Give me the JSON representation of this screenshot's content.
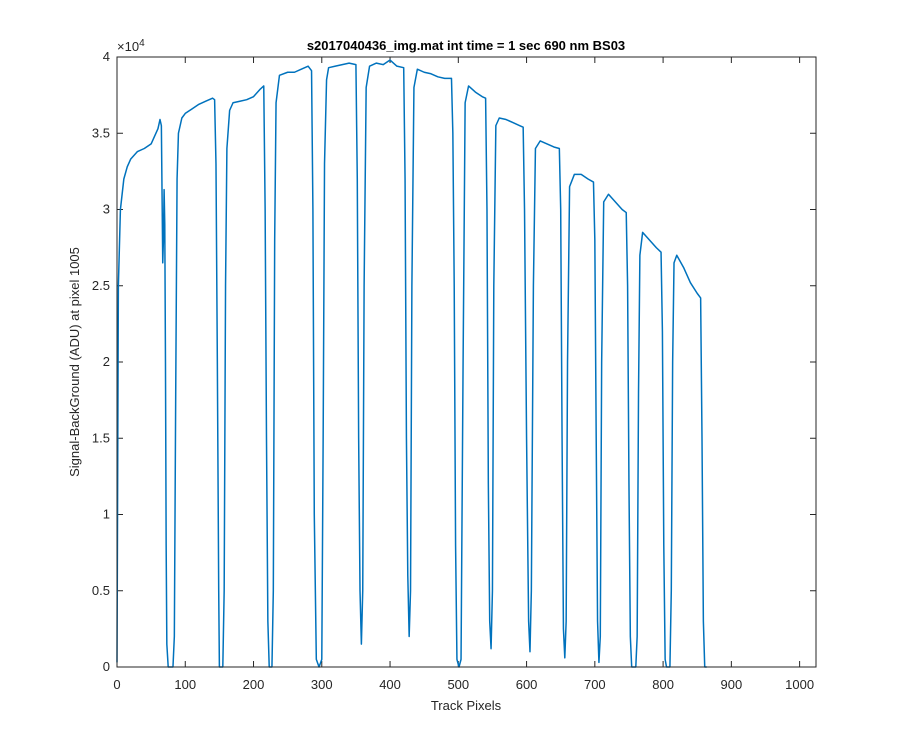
{
  "chart_data": {
    "type": "line",
    "title": "s2017040436_img.mat int time = 1 sec  690 nm BS03",
    "xlabel": "Track Pixels",
    "ylabel": "Signal-BackGround (ADU) at pixel 1005",
    "xlim": [
      0,
      1024
    ],
    "ylim": [
      0,
      40000
    ],
    "x_ticks": [
      0,
      100,
      200,
      300,
      400,
      500,
      600,
      700,
      800,
      900,
      1000
    ],
    "x_tick_labels": [
      "0",
      "100",
      "200",
      "300",
      "400",
      "500",
      "600",
      "700",
      "800",
      "900",
      "1000"
    ],
    "y_ticks": [
      0,
      5000,
      10000,
      15000,
      20000,
      25000,
      30000,
      35000,
      40000
    ],
    "y_tick_labels": [
      "0",
      "0.5",
      "1",
      "1.5",
      "2",
      "2.5",
      "3",
      "3.5",
      "4"
    ],
    "y_exponent_label": "×10",
    "y_exponent_power": "4",
    "grid": false,
    "line_color": "#0072BD",
    "series": [
      {
        "values_xy": [
          [
            0,
            300
          ],
          [
            2,
            25000
          ],
          [
            5,
            30000
          ],
          [
            10,
            32000
          ],
          [
            15,
            32800
          ],
          [
            20,
            33300
          ],
          [
            30,
            33800
          ],
          [
            40,
            34000
          ],
          [
            50,
            34300
          ],
          [
            55,
            34800
          ],
          [
            60,
            35300
          ],
          [
            63,
            35900
          ],
          [
            65,
            35500
          ],
          [
            66,
            31000
          ],
          [
            67,
            26500
          ],
          [
            68,
            28000
          ],
          [
            69,
            31300
          ],
          [
            70,
            29000
          ],
          [
            71,
            20000
          ],
          [
            72,
            8000
          ],
          [
            73,
            1500
          ],
          [
            75,
            0
          ],
          [
            82,
            0
          ],
          [
            84,
            2000
          ],
          [
            86,
            18000
          ],
          [
            88,
            32000
          ],
          [
            90,
            35000
          ],
          [
            95,
            36000
          ],
          [
            100,
            36300
          ],
          [
            110,
            36600
          ],
          [
            120,
            36900
          ],
          [
            130,
            37100
          ],
          [
            140,
            37300
          ],
          [
            143,
            37200
          ],
          [
            145,
            33000
          ],
          [
            147,
            20000
          ],
          [
            149,
            5000
          ],
          [
            150,
            0
          ],
          [
            155,
            0
          ],
          [
            157,
            5000
          ],
          [
            159,
            25000
          ],
          [
            161,
            34000
          ],
          [
            165,
            36500
          ],
          [
            170,
            37000
          ],
          [
            180,
            37100
          ],
          [
            190,
            37200
          ],
          [
            200,
            37400
          ],
          [
            210,
            37900
          ],
          [
            215,
            38100
          ],
          [
            217,
            30000
          ],
          [
            219,
            15000
          ],
          [
            221,
            3000
          ],
          [
            223,
            0
          ],
          [
            227,
            0
          ],
          [
            229,
            5000
          ],
          [
            231,
            28000
          ],
          [
            233,
            37000
          ],
          [
            238,
            38800
          ],
          [
            250,
            39000
          ],
          [
            260,
            39000
          ],
          [
            270,
            39200
          ],
          [
            280,
            39400
          ],
          [
            285,
            39100
          ],
          [
            287,
            30000
          ],
          [
            289,
            10000
          ],
          [
            292,
            500
          ],
          [
            296,
            0
          ],
          [
            300,
            500
          ],
          [
            302,
            15000
          ],
          [
            304,
            33000
          ],
          [
            307,
            38500
          ],
          [
            310,
            39300
          ],
          [
            320,
            39400
          ],
          [
            330,
            39500
          ],
          [
            340,
            39600
          ],
          [
            350,
            39500
          ],
          [
            352,
            32000
          ],
          [
            354,
            15000
          ],
          [
            356,
            5000
          ],
          [
            358,
            1500
          ],
          [
            360,
            5000
          ],
          [
            362,
            25000
          ],
          [
            365,
            38000
          ],
          [
            370,
            39400
          ],
          [
            380,
            39600
          ],
          [
            390,
            39500
          ],
          [
            400,
            39800
          ],
          [
            410,
            39400
          ],
          [
            420,
            39300
          ],
          [
            422,
            32000
          ],
          [
            424,
            15000
          ],
          [
            426,
            6000
          ],
          [
            428,
            2000
          ],
          [
            430,
            5000
          ],
          [
            432,
            25000
          ],
          [
            435,
            38000
          ],
          [
            440,
            39200
          ],
          [
            450,
            39000
          ],
          [
            460,
            38900
          ],
          [
            470,
            38700
          ],
          [
            480,
            38600
          ],
          [
            490,
            38600
          ],
          [
            492,
            35000
          ],
          [
            494,
            25000
          ],
          [
            496,
            8000
          ],
          [
            498,
            500
          ],
          [
            501,
            0
          ],
          [
            504,
            500
          ],
          [
            507,
            20000
          ],
          [
            510,
            37000
          ],
          [
            515,
            38100
          ],
          [
            525,
            37700
          ],
          [
            535,
            37400
          ],
          [
            540,
            37300
          ],
          [
            542,
            30000
          ],
          [
            544,
            12000
          ],
          [
            546,
            3000
          ],
          [
            548,
            1200
          ],
          [
            550,
            5000
          ],
          [
            552,
            25000
          ],
          [
            555,
            35500
          ],
          [
            560,
            36000
          ],
          [
            570,
            35900
          ],
          [
            580,
            35700
          ],
          [
            590,
            35500
          ],
          [
            595,
            35400
          ],
          [
            597,
            30000
          ],
          [
            600,
            15000
          ],
          [
            603,
            3000
          ],
          [
            605,
            1000
          ],
          [
            607,
            5000
          ],
          [
            610,
            25000
          ],
          [
            613,
            34000
          ],
          [
            620,
            34500
          ],
          [
            630,
            34300
          ],
          [
            640,
            34100
          ],
          [
            648,
            34000
          ],
          [
            650,
            30000
          ],
          [
            652,
            15000
          ],
          [
            654,
            2500
          ],
          [
            656,
            600
          ],
          [
            658,
            3000
          ],
          [
            660,
            20000
          ],
          [
            663,
            31500
          ],
          [
            670,
            32300
          ],
          [
            680,
            32300
          ],
          [
            690,
            32000
          ],
          [
            698,
            31800
          ],
          [
            700,
            28000
          ],
          [
            702,
            15000
          ],
          [
            704,
            3000
          ],
          [
            706,
            300
          ],
          [
            708,
            2000
          ],
          [
            710,
            20000
          ],
          [
            713,
            30500
          ],
          [
            720,
            31000
          ],
          [
            730,
            30500
          ],
          [
            740,
            30000
          ],
          [
            746,
            29800
          ],
          [
            748,
            25000
          ],
          [
            750,
            12000
          ],
          [
            752,
            2000
          ],
          [
            754,
            0
          ],
          [
            760,
            0
          ],
          [
            762,
            2000
          ],
          [
            764,
            18000
          ],
          [
            766,
            27000
          ],
          [
            770,
            28500
          ],
          [
            780,
            28000
          ],
          [
            790,
            27500
          ],
          [
            797,
            27200
          ],
          [
            799,
            22000
          ],
          [
            801,
            8000
          ],
          [
            803,
            500
          ],
          [
            805,
            0
          ],
          [
            810,
            0
          ],
          [
            812,
            5000
          ],
          [
            814,
            20000
          ],
          [
            816,
            26500
          ],
          [
            820,
            27000
          ],
          [
            830,
            26200
          ],
          [
            840,
            25200
          ],
          [
            850,
            24500
          ],
          [
            855,
            24200
          ],
          [
            857,
            15000
          ],
          [
            859,
            3000
          ],
          [
            861,
            0
          ],
          [
            864,
            0
          ]
        ]
      }
    ]
  }
}
